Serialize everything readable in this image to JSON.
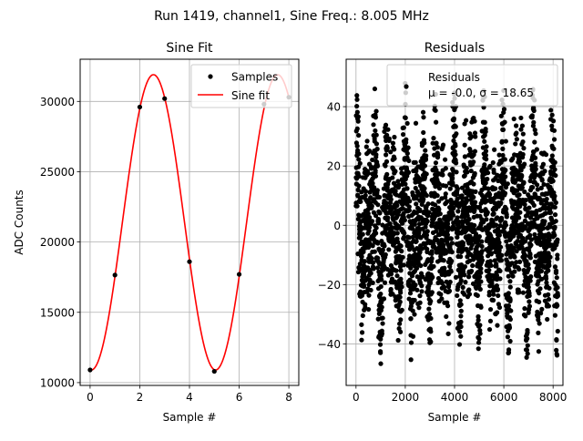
{
  "figure": {
    "suptitle": "Run 1419, channel1, Sine Freq.: 8.005 MHz"
  },
  "chart_data": [
    {
      "type": "scatter+line",
      "title": "Sine Fit",
      "xlabel": "Sample #",
      "ylabel": "ADC Counts",
      "xlim": [
        -0.4,
        8.4
      ],
      "ylim": [
        9800,
        33000
      ],
      "xticks": [
        0,
        2,
        4,
        6,
        8
      ],
      "yticks": [
        10000,
        15000,
        20000,
        25000,
        30000
      ],
      "grid": true,
      "legend_position": "top-right",
      "samples": {
        "name": "Samples",
        "x": [
          0,
          1,
          2,
          3,
          4,
          5,
          6,
          7,
          8
        ],
        "y": [
          10900,
          17650,
          29600,
          30200,
          18600,
          10800,
          17700,
          29800,
          30300
        ]
      },
      "fit": {
        "name": "Sine fit",
        "color": "#ff0000",
        "amplitude": 10500,
        "offset": 21400,
        "period": 5.0,
        "peak_x": 2.55,
        "x_range": [
          0,
          8
        ]
      }
    },
    {
      "type": "scatter",
      "title": "Residuals",
      "xlabel": "Sample #",
      "ylabel": "",
      "xlim": [
        -400,
        8400
      ],
      "ylim": [
        -54,
        56
      ],
      "xticks": [
        0,
        2000,
        4000,
        6000,
        8000
      ],
      "yticks": [
        -40,
        -20,
        0,
        20,
        40
      ],
      "grid": true,
      "legend_position": "top-right",
      "series": {
        "name": "Residuals",
        "n_points": 8192,
        "mu": "-0.0",
        "sigma": "18.65",
        "y_range": [
          -48,
          48
        ]
      },
      "legend_text": {
        "line1": "Residuals",
        "line2": "μ = -0.0, σ = 18.65"
      }
    }
  ]
}
